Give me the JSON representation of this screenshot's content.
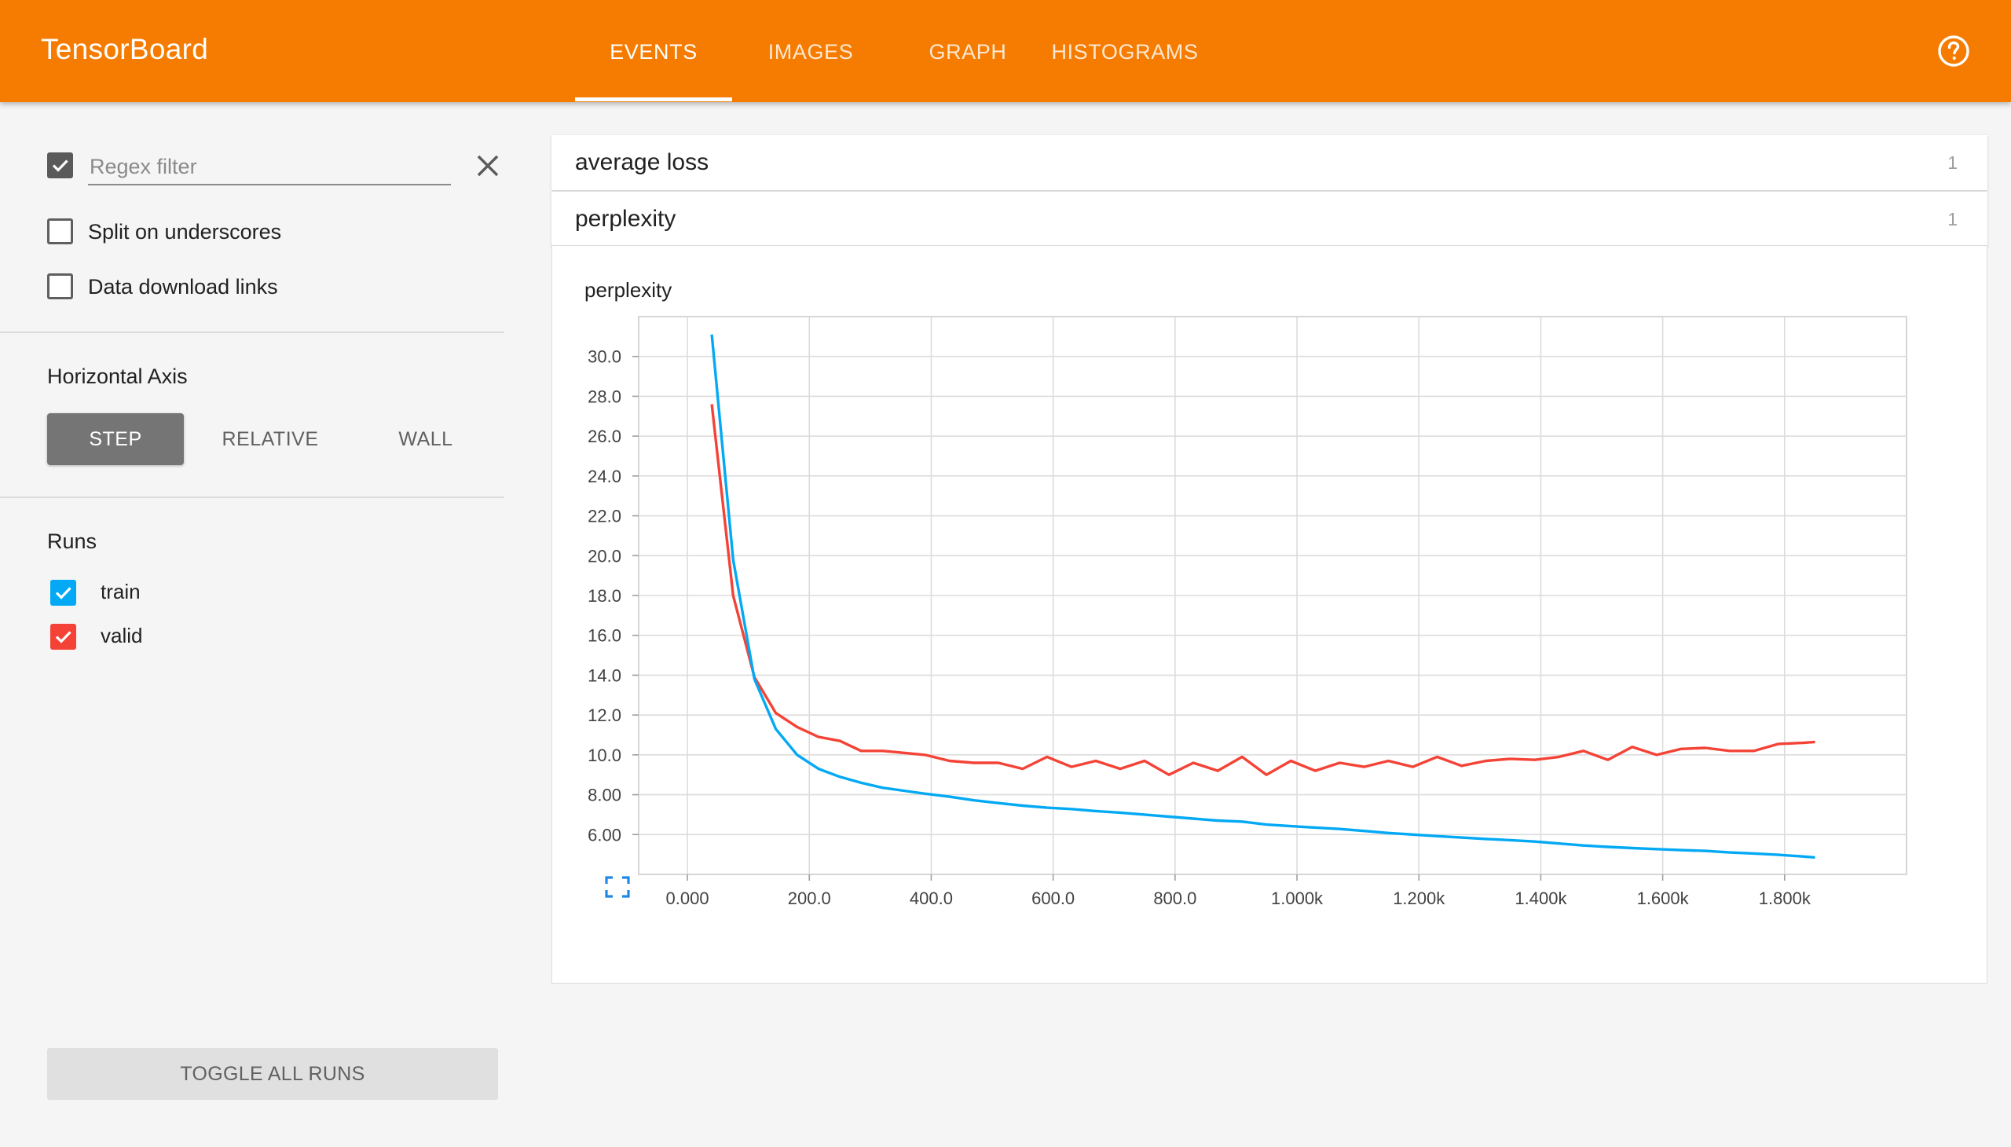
{
  "header": {
    "brand": "TensorBoard",
    "tabs": [
      {
        "label": "EVENTS",
        "active": true
      },
      {
        "label": "IMAGES",
        "active": false
      },
      {
        "label": "GRAPH",
        "active": false
      },
      {
        "label": "HISTOGRAMS",
        "active": false
      }
    ],
    "help_icon": "help-circle-icon",
    "accent_color": "#f57c00"
  },
  "sidebar": {
    "regex_checked": true,
    "regex_placeholder": "Regex filter",
    "regex_value": "",
    "split_label": "Split on underscores",
    "split_checked": false,
    "download_label": "Data download links",
    "download_checked": false,
    "horizontal_axis_title": "Horizontal Axis",
    "axis_options": [
      "STEP",
      "RELATIVE",
      "WALL"
    ],
    "axis_selected": "STEP",
    "runs_title": "Runs",
    "runs": [
      {
        "name": "train",
        "checked": true,
        "color": "#03a9f4"
      },
      {
        "name": "valid",
        "checked": true,
        "color": "#f44336"
      }
    ],
    "toggle_all_label": "TOGGLE ALL RUNS"
  },
  "main": {
    "categories": [
      {
        "name": "average loss",
        "count": "1"
      },
      {
        "name": "perplexity",
        "count": "1"
      }
    ]
  },
  "chart_data": {
    "type": "line",
    "title": "perplexity",
    "xlabel": "",
    "ylabel": "",
    "xlim": [
      -80,
      2000
    ],
    "ylim": [
      4.0,
      32.0
    ],
    "x_ticks": [
      0,
      200,
      400,
      600,
      800,
      1000,
      1200,
      1400,
      1600,
      1800
    ],
    "x_tick_labels": [
      "0.000",
      "200.0",
      "400.0",
      "600.0",
      "800.0",
      "1.000k",
      "1.200k",
      "1.400k",
      "1.600k",
      "1.800k"
    ],
    "y_ticks": [
      6,
      8,
      10,
      12,
      14,
      16,
      18,
      20,
      22,
      24,
      26,
      28,
      30
    ],
    "y_tick_labels": [
      "6.00",
      "8.00",
      "10.0",
      "12.0",
      "14.0",
      "16.0",
      "18.0",
      "20.0",
      "22.0",
      "24.0",
      "26.0",
      "28.0",
      "30.0"
    ],
    "grid": true,
    "series": [
      {
        "name": "train",
        "color": "#03a9f4",
        "x": [
          40,
          75,
          110,
          145,
          180,
          215,
          250,
          285,
          320,
          355,
          390,
          430,
          470,
          510,
          550,
          590,
          630,
          670,
          710,
          750,
          790,
          830,
          870,
          910,
          950,
          990,
          1030,
          1070,
          1110,
          1150,
          1190,
          1230,
          1270,
          1310,
          1350,
          1390,
          1430,
          1470,
          1510,
          1550,
          1590,
          1630,
          1670,
          1710,
          1750,
          1790,
          1830,
          1850
        ],
        "y": [
          31.1,
          19.8,
          13.8,
          11.3,
          10.0,
          9.3,
          8.9,
          8.6,
          8.35,
          8.2,
          8.05,
          7.9,
          7.72,
          7.58,
          7.45,
          7.35,
          7.28,
          7.18,
          7.1,
          7.0,
          6.9,
          6.8,
          6.7,
          6.65,
          6.5,
          6.42,
          6.35,
          6.28,
          6.18,
          6.08,
          6.0,
          5.92,
          5.85,
          5.78,
          5.72,
          5.65,
          5.55,
          5.45,
          5.38,
          5.32,
          5.27,
          5.22,
          5.18,
          5.1,
          5.05,
          4.98,
          4.9,
          4.85
        ]
      },
      {
        "name": "valid",
        "color": "#f44336",
        "x": [
          40,
          75,
          110,
          145,
          180,
          215,
          250,
          285,
          320,
          355,
          390,
          430,
          470,
          510,
          550,
          590,
          630,
          670,
          710,
          750,
          790,
          830,
          870,
          910,
          950,
          990,
          1030,
          1070,
          1110,
          1150,
          1190,
          1230,
          1270,
          1310,
          1350,
          1390,
          1430,
          1470,
          1510,
          1550,
          1590,
          1630,
          1670,
          1710,
          1750,
          1790,
          1830,
          1850
        ],
        "y": [
          27.6,
          18.0,
          13.9,
          12.1,
          11.4,
          10.9,
          10.7,
          10.2,
          10.2,
          10.1,
          10.0,
          9.7,
          9.6,
          9.6,
          9.3,
          9.9,
          9.4,
          9.7,
          9.3,
          9.7,
          9.0,
          9.6,
          9.2,
          9.9,
          9.0,
          9.7,
          9.2,
          9.6,
          9.4,
          9.7,
          9.4,
          9.9,
          9.45,
          9.7,
          9.8,
          9.75,
          9.9,
          10.2,
          9.75,
          10.4,
          10.0,
          10.3,
          10.35,
          10.2,
          10.2,
          10.55,
          10.6,
          10.65
        ]
      }
    ]
  }
}
